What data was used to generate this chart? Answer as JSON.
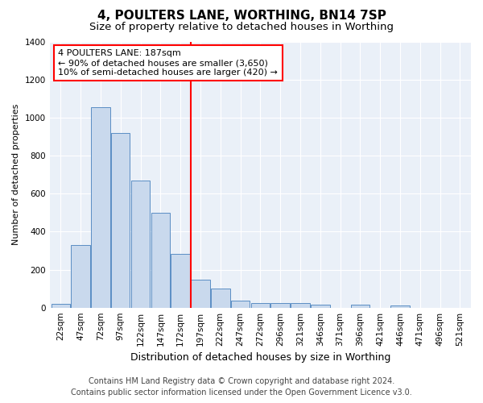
{
  "title": "4, POULTERS LANE, WORTHING, BN14 7SP",
  "subtitle": "Size of property relative to detached houses in Worthing",
  "xlabel": "Distribution of detached houses by size in Worthing",
  "ylabel": "Number of detached properties",
  "footer_line1": "Contains HM Land Registry data © Crown copyright and database right 2024.",
  "footer_line2": "Contains public sector information licensed under the Open Government Licence v3.0.",
  "bar_labels": [
    "22sqm",
    "47sqm",
    "72sqm",
    "97sqm",
    "122sqm",
    "147sqm",
    "172sqm",
    "197sqm",
    "222sqm",
    "247sqm",
    "272sqm",
    "296sqm",
    "321sqm",
    "346sqm",
    "371sqm",
    "396sqm",
    "421sqm",
    "446sqm",
    "471sqm",
    "496sqm",
    "521sqm"
  ],
  "bar_values": [
    20,
    328,
    1055,
    920,
    670,
    500,
    283,
    148,
    100,
    38,
    22,
    22,
    22,
    15,
    0,
    15,
    0,
    10,
    0,
    0,
    0
  ],
  "bar_color": "#c9d9ed",
  "bar_edgecolor": "#5b8ec4",
  "vline_color": "red",
  "vline_pos": 7.5,
  "annotation_text": "4 POULTERS LANE: 187sqm\n← 90% of detached houses are smaller (3,650)\n10% of semi-detached houses are larger (420) →",
  "annotation_box_edgecolor": "red",
  "annotation_box_facecolor": "white",
  "ylim": [
    0,
    1400
  ],
  "yticks": [
    0,
    200,
    400,
    600,
    800,
    1000,
    1200,
    1400
  ],
  "plot_bg_color": "#eaf0f8",
  "grid_color": "white",
  "title_fontsize": 11,
  "subtitle_fontsize": 9.5,
  "xlabel_fontsize": 9,
  "ylabel_fontsize": 8,
  "tick_fontsize": 7.5,
  "annotation_fontsize": 8,
  "footer_fontsize": 7
}
